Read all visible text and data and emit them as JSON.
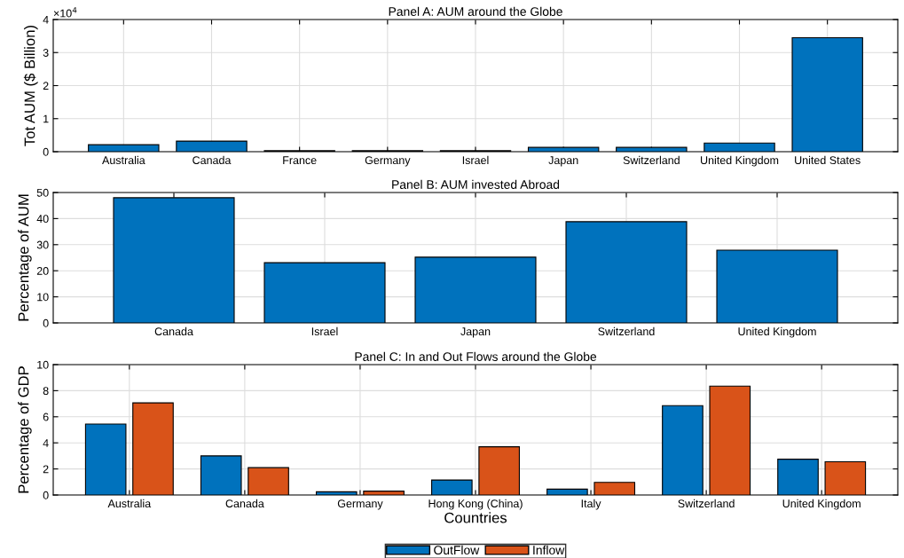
{
  "chart_data": [
    {
      "type": "bar",
      "title": "Panel A: AUM around the Globe",
      "ylabel": "Tot AUM ($ Billion)",
      "annotations": [
        "×10$^{4}$"
      ],
      "categories": [
        "Australia",
        "Canada",
        "France",
        "Germany",
        "Israel",
        "Japan",
        "Switzerland",
        "United Kingdom",
        "United States"
      ],
      "series": [
        {
          "color": "#0072bd",
          "values": [
            0.21,
            0.32,
            0.03,
            0.03,
            0.03,
            0.13,
            0.13,
            0.26,
            3.45
          ]
        }
      ],
      "ylim": [
        0,
        4
      ],
      "yticks": [
        0,
        1,
        2,
        3,
        4
      ],
      "grid": true
    },
    {
      "type": "bar",
      "title": "Panel B: AUM invested Abroad",
      "ylabel": "Percentage of AUM",
      "categories": [
        "Canada",
        "Israel",
        "Japan",
        "Switzerland",
        "United Kingdom"
      ],
      "series": [
        {
          "color": "#0072bd",
          "values": [
            48,
            23.1,
            25.2,
            38.8,
            27.9
          ]
        }
      ],
      "ylim": [
        0,
        50
      ],
      "yticks": [
        0,
        10,
        20,
        30,
        40,
        50
      ],
      "grid": true
    },
    {
      "type": "bar",
      "title": "Panel C: In and Out Flows around the Globe",
      "ylabel": "Percentage of GDP",
      "xlabel": "Countries",
      "categories": [
        "Australia",
        "Canada",
        "Germany",
        "Hong Kong (China)",
        "Italy",
        "Switzerland",
        "United Kingdom"
      ],
      "series": [
        {
          "name": "OutFlow",
          "color": "#0072bd",
          "values": [
            5.44,
            3.0,
            0.25,
            1.15,
            0.45,
            6.85,
            2.75
          ]
        },
        {
          "name": "Inflow",
          "color": "#d95319",
          "values": [
            7.07,
            2.1,
            0.3,
            3.7,
            0.97,
            8.35,
            2.55
          ]
        }
      ],
      "ylim": [
        0,
        10
      ],
      "yticks": [
        0,
        2,
        4,
        6,
        8,
        10
      ],
      "grid": true,
      "legend": "bottom"
    }
  ]
}
